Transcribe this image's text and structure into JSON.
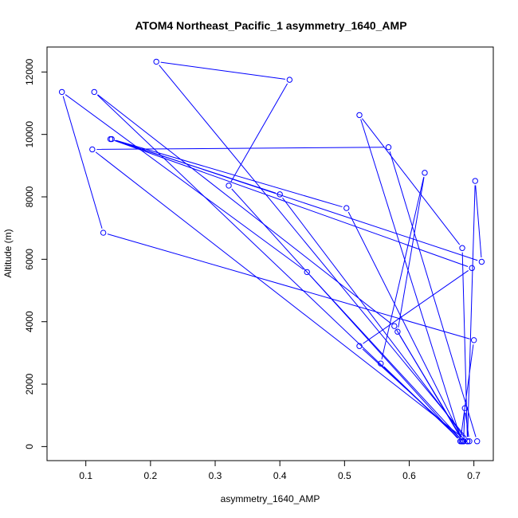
{
  "chart_data": {
    "type": "line",
    "title": "ATOM4 Northeast_Pacific_1 asymmetry_1640_AMP",
    "xlabel": "asymmetry_1640_AMP",
    "ylabel": "Altitude (m)",
    "xlim": [
      0.04,
      0.73
    ],
    "ylim": [
      -450,
      12800
    ],
    "xticks": [
      0.1,
      0.2,
      0.3,
      0.4,
      0.5,
      0.6,
      0.7
    ],
    "xtick_labels": [
      "0.1",
      "0.2",
      "0.3",
      "0.4",
      "0.5",
      "0.6",
      "0.7"
    ],
    "yticks": [
      0,
      2000,
      4000,
      6000,
      8000,
      10000,
      12000
    ],
    "ytick_labels": [
      "0",
      "2000",
      "4000",
      "6000",
      "8000",
      "10000",
      "12000"
    ],
    "grid": false,
    "series_color": "#0000ff",
    "points": [
      {
        "x": 0.705,
        "y": 170
      },
      {
        "x": 0.568,
        "y": 9590
      },
      {
        "x": 0.11,
        "y": 9520
      },
      {
        "x": 0.69,
        "y": 170
      },
      {
        "x": 0.682,
        "y": 6360
      },
      {
        "x": 0.523,
        "y": 10620
      },
      {
        "x": 0.681,
        "y": 170
      },
      {
        "x": 0.113,
        "y": 11360
      },
      {
        "x": 0.577,
        "y": 3860
      },
      {
        "x": 0.683,
        "y": 170
      },
      {
        "x": 0.442,
        "y": 5590
      },
      {
        "x": 0.063,
        "y": 11360
      },
      {
        "x": 0.127,
        "y": 6850
      },
      {
        "x": 0.7,
        "y": 3410
      },
      {
        "x": 0.679,
        "y": 170
      },
      {
        "x": 0.321,
        "y": 8360
      },
      {
        "x": 0.415,
        "y": 11750
      },
      {
        "x": 0.209,
        "y": 12330
      },
      {
        "x": 0.693,
        "y": 170
      },
      {
        "x": 0.686,
        "y": 1230
      },
      {
        "x": 0.684,
        "y": 170
      },
      {
        "x": 0.503,
        "y": 7640
      },
      {
        "x": 0.14,
        "y": 9850
      },
      {
        "x": 0.712,
        "y": 5920
      },
      {
        "x": 0.702,
        "y": 8510
      },
      {
        "x": 0.69,
        "y": 170
      },
      {
        "x": 0.4,
        "y": 8080
      },
      {
        "x": 0.138,
        "y": 9850
      },
      {
        "x": 0.697,
        "y": 5720
      },
      {
        "x": 0.523,
        "y": 3220
      },
      {
        "x": 0.684,
        "y": 170
      },
      {
        "x": 0.582,
        "y": 3680
      },
      {
        "x": 0.624,
        "y": 8770
      },
      {
        "x": 0.556,
        "y": 2660
      },
      {
        "x": 0.681,
        "y": 170
      }
    ]
  }
}
